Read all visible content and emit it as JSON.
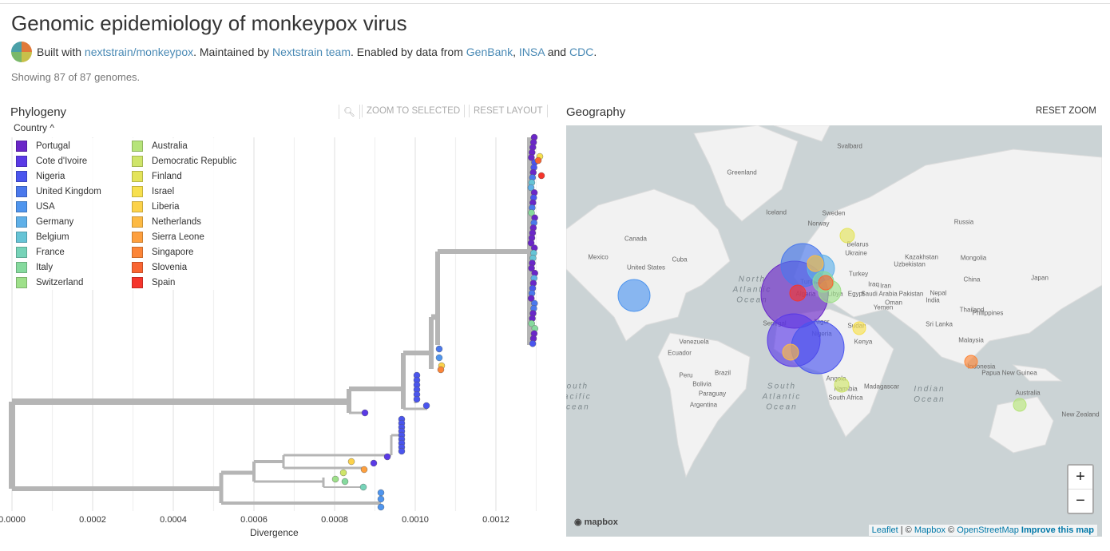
{
  "header": {
    "title": "Genomic epidemiology of monkeypox virus",
    "byline": {
      "built_with": "Built with",
      "repo_link": "nextstrain/monkeypox",
      "maintained_by": ". Maintained by",
      "team_link": "Nextstrain team",
      "enabled": ". Enabled by data from",
      "src1": "GenBank",
      "comma": ",",
      "src2": "INSA",
      "and": "and",
      "src3": "CDC",
      "end": "."
    },
    "showing": "Showing 87 of 87 genomes."
  },
  "phylogeny": {
    "title": "Phylogeny",
    "zoom_icon": "magnifier-icon",
    "zoom_to_selected": "ZOOM TO SELECTED",
    "reset_layout": "RESET LAYOUT",
    "legend_title": "Country ^",
    "legend": [
      {
        "label": "Portugal",
        "color": "#6a26c8"
      },
      {
        "label": "Cote d'Ivoire",
        "color": "#5a3ae6"
      },
      {
        "label": "Nigeria",
        "color": "#4a55ee"
      },
      {
        "label": "United Kingdom",
        "color": "#4a78ec"
      },
      {
        "label": "USA",
        "color": "#4f95ee"
      },
      {
        "label": "Germany",
        "color": "#5fb0e8"
      },
      {
        "label": "Belgium",
        "color": "#66c4d6"
      },
      {
        "label": "France",
        "color": "#76d3b8"
      },
      {
        "label": "Italy",
        "color": "#86da9e"
      },
      {
        "label": "Switzerland",
        "color": "#9ee08a"
      },
      {
        "label": "Australia",
        "color": "#b6e47a"
      },
      {
        "label": "Democratic Republic",
        "color": "#cfe56a"
      },
      {
        "label": "Finland",
        "color": "#e4e45a"
      },
      {
        "label": "Israel",
        "color": "#f7e04e"
      },
      {
        "label": "Liberia",
        "color": "#fcd24a"
      },
      {
        "label": "Netherlands",
        "color": "#fdba44"
      },
      {
        "label": "Sierra Leone",
        "color": "#fd9f3e"
      },
      {
        "label": "Singapore",
        "color": "#fc8538"
      },
      {
        "label": "Slovenia",
        "color": "#f96532"
      },
      {
        "label": "Spain",
        "color": "#f5352c"
      }
    ],
    "axis": {
      "ticks": [
        "0.0000",
        "0.0002",
        "0.0004",
        "0.0006",
        "0.0008",
        "0.0010",
        "0.0012"
      ],
      "label": "Divergence"
    }
  },
  "geography": {
    "title": "Geography",
    "reset_zoom": "RESET ZOOM",
    "labels": [
      "Greenland",
      "Svalbard",
      "Iceland",
      "Sweden",
      "Norway",
      "Russia",
      "Canada",
      "Belarus",
      "Ukraine",
      "Kazakhstan",
      "Mongolia",
      "Uzbekistan",
      "Turkey",
      "China",
      "Japan",
      "United States",
      "Mexico",
      "Cuba",
      "Tunisia",
      "Algeria",
      "Libya",
      "Egypt",
      "Iraq",
      "Iran",
      "Saudi Arabia",
      "Pakistan",
      "Nepal",
      "India",
      "Oman",
      "Yemen",
      "Sudan",
      "Thailand",
      "Philippines",
      "Sri Lanka",
      "Venezuela",
      "Ecuador",
      "Peru",
      "Brazil",
      "Bolivia",
      "Paraguay",
      "Argentina",
      "Senegal",
      "Niger",
      "Nigeria",
      "Angola",
      "Namibia",
      "South Africa",
      "Madagascar",
      "Kenya",
      "Indonesia",
      "Papua New Guinea",
      "Australia",
      "New Zealand",
      "Malaysia"
    ],
    "oceans": [
      "North Atlantic Ocean",
      "South Atlantic Ocean",
      "Indian Ocean",
      "South Pacific Ocean"
    ],
    "zoom_in": "+",
    "zoom_out": "−",
    "mapbox_logo": "mapbox",
    "attribution": {
      "leaflet": "Leaflet",
      "sep": " | © ",
      "mapbox": "Mapbox",
      "sep2": " © ",
      "osm": "OpenStreetMap",
      "improve": "Improve this map"
    }
  }
}
